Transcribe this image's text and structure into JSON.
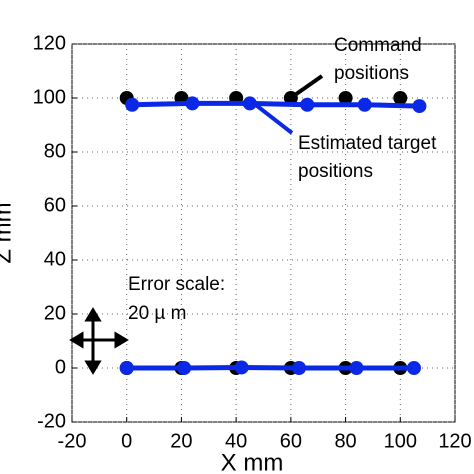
{
  "chart_data": {
    "type": "scatter",
    "xlabel": "X mm",
    "ylabel": "Z mm",
    "xlim": [
      -20,
      120
    ],
    "ylim": [
      -20,
      120
    ],
    "xticks": [
      -20,
      0,
      20,
      40,
      60,
      80,
      100,
      120
    ],
    "yticks": [
      -20,
      0,
      20,
      40,
      60,
      80,
      100,
      120
    ],
    "grid": true,
    "series": [
      {
        "color": "#000000",
        "line": false,
        "x": [
          0,
          20,
          40,
          60,
          80,
          100,
          0,
          20,
          40,
          60,
          80,
          100
        ],
        "y": [
          100,
          100,
          100,
          100,
          100,
          100,
          0,
          0,
          0,
          0,
          0,
          0
        ]
      },
      {
        "color": "#0a28e6",
        "line": true,
        "x": [
          2,
          24,
          45,
          66,
          87,
          107,
          null,
          0,
          21,
          42,
          63,
          84,
          105
        ],
        "y": [
          97.5,
          98,
          98,
          97.5,
          97.5,
          97,
          null,
          0,
          0,
          0.2,
          0,
          0,
          0
        ]
      }
    ],
    "annotations": [
      {
        "lines": [
          "Command",
          "positions"
        ]
      },
      {
        "lines": [
          "Estimated target",
          "positions"
        ]
      },
      {
        "lines": [
          "Error scale:",
          "20 µ m"
        ]
      }
    ]
  }
}
